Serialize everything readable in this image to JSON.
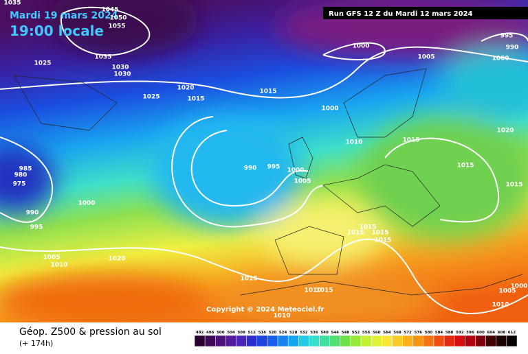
{
  "header": {
    "date": "Mardi 19 mars 2024",
    "time": "19:00 locale",
    "run": "Run GFS 12 Z du Mardi 12 mars 2024"
  },
  "copyright": "Copyright © 2024 Meteociel.fr",
  "footer": {
    "title": "Géop. Z500 & pression au sol",
    "lead": "(+ 174h)"
  },
  "isobar_labels": [
    "1035",
    "1045",
    "1050",
    "1055",
    "1035",
    "1030",
    "1030",
    "1025",
    "1020",
    "1025",
    "1015",
    "1015",
    "1000",
    "1000",
    "1005",
    "995",
    "990",
    "1000",
    "1020",
    "1010",
    "1015",
    "1015",
    "1015",
    "990",
    "995",
    "1000",
    "1005",
    "985",
    "980",
    "975",
    "1000",
    "990",
    "995",
    "1005",
    "1010",
    "1020",
    "1015",
    "1015",
    "1015",
    "1015",
    "1015",
    "1010",
    "1015",
    "1010",
    "1010",
    "1005",
    "1000"
  ],
  "legend": [
    492,
    496,
    500,
    504,
    508,
    512,
    516,
    520,
    524,
    528,
    532,
    536,
    540,
    544,
    548,
    552,
    556,
    560,
    564,
    568,
    572,
    576,
    580,
    584,
    588,
    592,
    596,
    600,
    604,
    608,
    612
  ]
}
